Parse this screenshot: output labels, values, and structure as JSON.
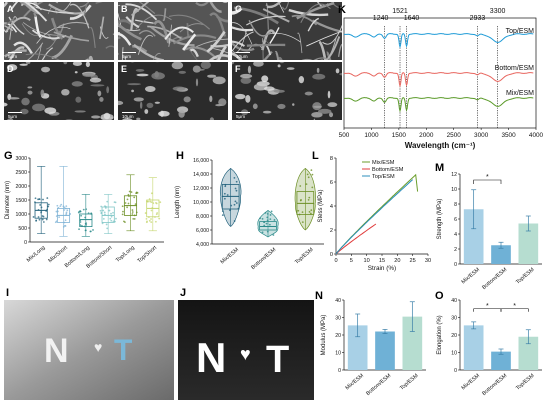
{
  "sem": {
    "tiles": [
      {
        "letter": "A",
        "scale": "5μm"
      },
      {
        "letter": "B",
        "scale": "5μm"
      },
      {
        "letter": "C",
        "scale": "10μm"
      },
      {
        "letter": "D",
        "scale": "5μm"
      },
      {
        "letter": "E",
        "scale": "10μm"
      },
      {
        "letter": "F",
        "scale": "5μm"
      }
    ]
  },
  "photos": {
    "I": {
      "letter": "I",
      "text": "N ♥ T"
    },
    "J": {
      "letter": "J",
      "text": "N ♥ T"
    }
  },
  "panel_letters": {
    "G": "G",
    "H": "H",
    "K": "K",
    "L": "L",
    "M": "M",
    "N": "N",
    "O": "O"
  },
  "chart_data": [
    {
      "panel": "G",
      "type": "box",
      "ylabel": "Diameter (nm)",
      "ylim": [
        0,
        3000
      ],
      "yticks": [
        "0",
        "500",
        "1000",
        "1500",
        "2000",
        "2500",
        "3000"
      ],
      "categories": [
        "Mix/Long",
        "Mix/Short",
        "Bottom/Long",
        "Bottom/Short",
        "Top/Long",
        "Top/Short"
      ],
      "colors": [
        "#1f5f7a",
        "#7fb3d5",
        "#2a8a8a",
        "#7fc6c6",
        "#6b8e23",
        "#c5d66e"
      ],
      "boxes": [
        {
          "q1": 850,
          "median": 1130,
          "q3": 1400,
          "min": 300,
          "max": 2700
        },
        {
          "q1": 700,
          "median": 950,
          "q3": 1200,
          "min": 200,
          "max": 2700
        },
        {
          "q1": 550,
          "median": 800,
          "q3": 1000,
          "min": 200,
          "max": 1700
        },
        {
          "q1": 700,
          "median": 950,
          "q3": 1250,
          "min": 300,
          "max": 1700
        },
        {
          "q1": 950,
          "median": 1300,
          "q3": 1650,
          "min": 400,
          "max": 2400
        },
        {
          "q1": 900,
          "median": 1200,
          "q3": 1500,
          "min": 400,
          "max": 2300
        }
      ]
    },
    {
      "panel": "H",
      "type": "violin",
      "ylabel": "Length (nm)",
      "ylim": [
        4000,
        16000
      ],
      "yticks": [
        "4,000",
        "6,000",
        "8,000",
        "10,000",
        "12,000",
        "14,000",
        "16,000"
      ],
      "categories": [
        "Mix/ESM",
        "Bottom/ESM",
        "Top/ESM"
      ],
      "colors": [
        "#1f5f7a",
        "#2a8a8a",
        "#6b8e23"
      ],
      "boxes": [
        {
          "q1": 9000,
          "median": 10800,
          "q3": 12500,
          "min": 6500,
          "max": 14800
        },
        {
          "q1": 6000,
          "median": 6500,
          "q3": 7200,
          "min": 5000,
          "max": 8800
        },
        {
          "q1": 8200,
          "median": 9800,
          "q3": 11500,
          "min": 6000,
          "max": 14800
        }
      ]
    },
    {
      "panel": "K",
      "type": "line",
      "xlabel": "Wavelength (cm⁻¹)",
      "xlim": [
        500,
        4000
      ],
      "xticks": [
        "500",
        "1000",
        "1500",
        "2000",
        "2500",
        "3000",
        "3500",
        "4000"
      ],
      "peaks": [
        "1240",
        "1521",
        "1640",
        "2933",
        "3300"
      ],
      "peak_positions": [
        1240,
        1521,
        1640,
        2933,
        3300
      ],
      "series": [
        {
          "name": "Top/ESM",
          "color": "#1e9bd7"
        },
        {
          "name": "Bottom/ESM",
          "color": "#e8655e"
        },
        {
          "name": "Mix/ESM",
          "color": "#5a9a28"
        }
      ]
    },
    {
      "panel": "L",
      "type": "line",
      "xlabel": "Strain (%)",
      "ylabel": "Stess (MPa)",
      "xlim": [
        0,
        30
      ],
      "ylim": [
        0,
        8
      ],
      "xticks": [
        "0",
        "5",
        "10",
        "15",
        "20",
        "25",
        "30"
      ],
      "yticks": [
        "0",
        "2",
        "4",
        "6",
        "8"
      ],
      "series": [
        {
          "name": "Mix/ESM",
          "color": "#6b9e2b",
          "end_strain": 26,
          "end_stress": 6.6
        },
        {
          "name": "Bottom/ESM",
          "color": "#e03c3c",
          "end_strain": 13,
          "end_stress": 2.5
        },
        {
          "name": "Top/ESM",
          "color": "#2c8fbd",
          "end_strain": 25,
          "end_stress": 6.2
        }
      ]
    },
    {
      "panel": "M",
      "type": "bar",
      "ylabel": "Strength (MPa)",
      "ylim": [
        0,
        12
      ],
      "yticks": [
        "0",
        "2",
        "4",
        "6",
        "8",
        "10",
        "12"
      ],
      "categories": [
        "Mix/ESM",
        "Bottom/ESM",
        "Top/ESM"
      ],
      "values": [
        7.3,
        2.5,
        5.4
      ],
      "errors": [
        2.6,
        0.4,
        1.0
      ],
      "colors": [
        "#a8d0e6",
        "#6fb1d6",
        "#b6ddd0"
      ],
      "significance": [
        "*"
      ]
    },
    {
      "panel": "N",
      "type": "bar",
      "ylabel": "Modulus (MPa)",
      "ylim": [
        0,
        40
      ],
      "yticks": [
        "0",
        "10",
        "20",
        "30",
        "40"
      ],
      "categories": [
        "Mix/ESM",
        "Bottom/ESM",
        "Top/ESM"
      ],
      "values": [
        25.5,
        22.0,
        30.5
      ],
      "errors": [
        6.5,
        1.2,
        8.5
      ],
      "colors": [
        "#a8d0e6",
        "#6fb1d6",
        "#b6ddd0"
      ]
    },
    {
      "panel": "O",
      "type": "bar",
      "ylabel": "Elongation (%)",
      "ylim": [
        0,
        40
      ],
      "yticks": [
        "0",
        "10",
        "20",
        "30",
        "40"
      ],
      "categories": [
        "Mix/ESM",
        "Bottom/ESM",
        "Top/ESM"
      ],
      "values": [
        25.5,
        10.5,
        19.0
      ],
      "errors": [
        2.0,
        1.5,
        4.0
      ],
      "colors": [
        "#a8d0e6",
        "#6fb1d6",
        "#b6ddd0"
      ],
      "significance": [
        "*",
        "*"
      ]
    }
  ]
}
